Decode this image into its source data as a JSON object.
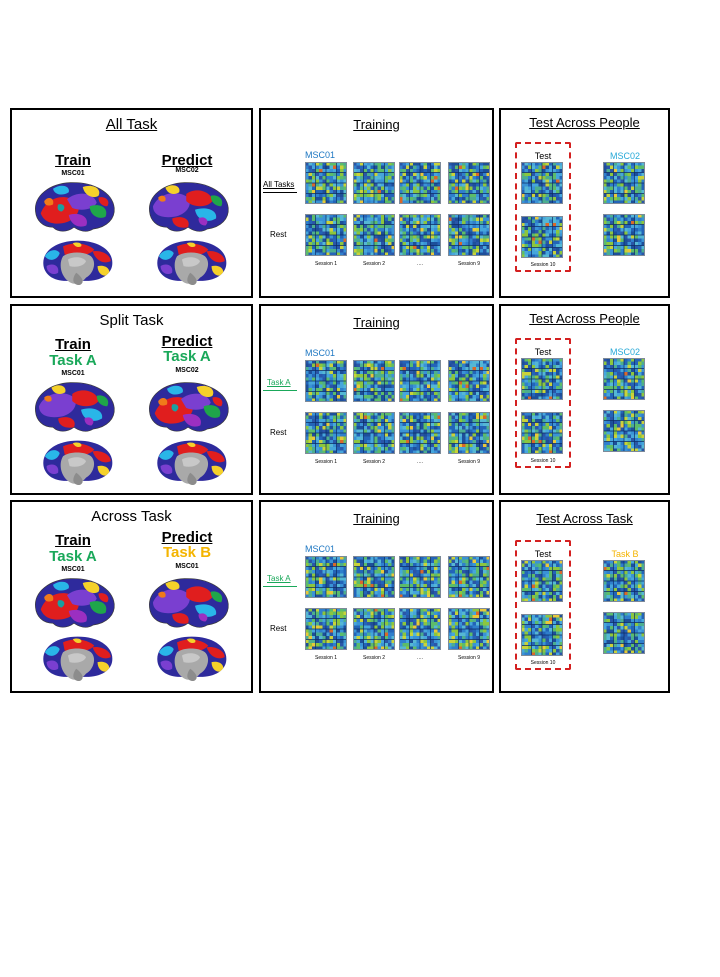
{
  "colors": {
    "green": "#1aa85a",
    "yellow": "#f4b400",
    "blue": "#1d77c2",
    "cyan": "#27a9d8",
    "red_dash": "#d42020"
  },
  "icons": [
    "brain-lateral-icon",
    "brain-medial-icon",
    "connectivity-matrix-icon"
  ],
  "rows": [
    {
      "left": {
        "title": "All Task",
        "train_header": "Train",
        "predict_header": "Predict",
        "train_task": "",
        "predict_task": "",
        "train_subject": "MSC01",
        "predict_subject": "MSC02"
      },
      "middle": {
        "title": "Training",
        "subject": "MSC01",
        "row1_label": "All Tasks",
        "row2_label": "Rest",
        "sessions": [
          "Session 1",
          "Session 2",
          "….",
          "Session 9"
        ]
      },
      "right": {
        "title": "Test Across People",
        "test_label": "Test",
        "target_label": "MSC02",
        "session_label": "Session 10"
      }
    },
    {
      "left": {
        "title": "Split Task",
        "train_header": "Train",
        "predict_header": "Predict",
        "train_task": "Task A",
        "predict_task": "Task A",
        "train_subject": "MSC01",
        "predict_subject": "MSC02"
      },
      "middle": {
        "title": "Training",
        "subject": "MSC01",
        "row1_label": "Task A",
        "row2_label": "Rest",
        "sessions": [
          "Session 1",
          "Session 2",
          "….",
          "Session 9"
        ]
      },
      "right": {
        "title": "Test Across People",
        "test_label": "Test",
        "target_label": "MSC02",
        "session_label": "Session 10"
      }
    },
    {
      "left": {
        "title": "Across Task",
        "train_header": "Train",
        "predict_header": "Predict",
        "train_task": "Task A",
        "predict_task": "Task B",
        "train_subject": "MSC01",
        "predict_subject": "MSC01"
      },
      "middle": {
        "title": "Training",
        "subject": "MSC01",
        "row1_label": "Task A",
        "row2_label": "Rest",
        "sessions": [
          "Session 1",
          "Session 2",
          "….",
          "Session 9"
        ]
      },
      "right": {
        "title": "Test Across Task",
        "test_label": "Test",
        "target_label": "Task B",
        "session_label": "Session 10"
      }
    }
  ]
}
